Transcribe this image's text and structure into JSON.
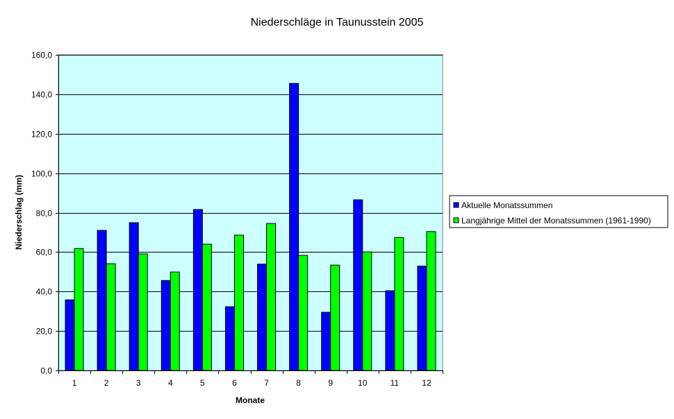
{
  "chart_data": {
    "type": "bar",
    "title": "Niederschläge in Taunusstein 2005",
    "xlabel": "Monate",
    "ylabel": "Niederschlag (mm)",
    "categories": [
      "1",
      "2",
      "3",
      "4",
      "5",
      "6",
      "7",
      "8",
      "9",
      "10",
      "11",
      "12"
    ],
    "series": [
      {
        "name": "Aktuelle Monatssummen",
        "color": "#0000ff",
        "values": [
          35.8,
          71.0,
          74.9,
          45.6,
          81.6,
          32.3,
          53.9,
          145.5,
          29.5,
          86.5,
          40.4,
          52.9
        ]
      },
      {
        "name": "Langjährige Mittel der Monatssummen (1961-1990)",
        "color": "#00ff00",
        "values": [
          61.8,
          54.1,
          59.1,
          49.9,
          64.0,
          68.6,
          74.5,
          58.3,
          53.4,
          60.1,
          67.4,
          70.4
        ]
      }
    ],
    "ylim": [
      0,
      160
    ],
    "yticks": [
      0,
      20,
      40,
      60,
      80,
      100,
      120,
      140,
      160
    ],
    "ytick_labels": [
      "0,0",
      "20,0",
      "40,0",
      "60,0",
      "80,0",
      "100,0",
      "120,0",
      "140,0",
      "160,0"
    ],
    "grid": true,
    "legend_position": "right",
    "plot_background": "#ccffff"
  }
}
